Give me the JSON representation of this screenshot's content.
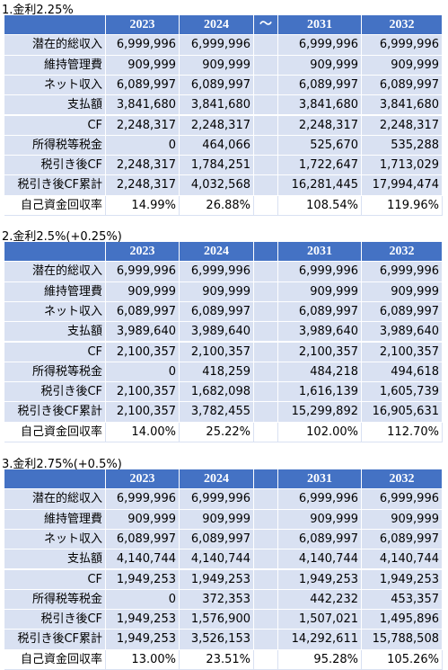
{
  "sections": [
    {
      "title": "1.金利2.25%",
      "headers": [
        "2023",
        "2024",
        "～",
        "2031",
        "2032"
      ],
      "rows": [
        [
          "潜在的総収入",
          "6,999,996",
          "6,999,996",
          "6,999,996",
          "6,999,996"
        ],
        [
          "維持管理費",
          "909,999",
          "909,999",
          "909,999",
          "909,999"
        ],
        [
          "ネット収入",
          "6,089,997",
          "6,089,997",
          "6,089,997",
          "6,089,997"
        ],
        [
          "支払額",
          "3,841,680",
          "3,841,680",
          "3,841,680",
          "3,841,680"
        ],
        [
          "CF",
          "2,248,317",
          "2,248,317",
          "2,248,317",
          "2,248,317"
        ],
        [
          "所得税等税金",
          "0",
          "464,066",
          "525,670",
          "535,288"
        ],
        [
          "税引き後CF",
          "2,248,317",
          "1,784,251",
          "1,722,647",
          "1,713,029"
        ],
        [
          "税引き後CF累計",
          "2,248,317",
          "4,032,568",
          "16,281,445",
          "17,994,474"
        ],
        [
          "自己資金回収率",
          "14.99%",
          "26.88%",
          "108.54%",
          "119.96%"
        ]
      ]
    },
    {
      "title": "2.金利2.5%(+0.25%)",
      "headers": [
        "2023",
        "2024",
        "2031",
        "2032"
      ],
      "rows": [
        [
          "潜在的総収入",
          "6,999,996",
          "6,999,996",
          "6,999,996",
          "6,999,996"
        ],
        [
          "維持管理費",
          "909,999",
          "909,999",
          "909,999",
          "909,999"
        ],
        [
          "ネット収入",
          "6,089,997",
          "6,089,997",
          "6,089,997",
          "6,089,997"
        ],
        [
          "支払額",
          "3,989,640",
          "3,989,640",
          "3,989,640",
          "3,989,640"
        ],
        [
          "CF",
          "2,100,357",
          "2,100,357",
          "2,100,357",
          "2,100,357"
        ],
        [
          "所得税等税金",
          "0",
          "418,259",
          "484,218",
          "494,618"
        ],
        [
          "税引き後CF",
          "2,100,357",
          "1,682,098",
          "1,616,139",
          "1,605,739"
        ],
        [
          "税引き後CF累計",
          "2,100,357",
          "3,782,455",
          "15,299,892",
          "16,905,631"
        ],
        [
          "自己資金回収率",
          "14.00%",
          "25.22%",
          "102.00%",
          "112.70%"
        ]
      ]
    },
    {
      "title": "3.金利2.75%(+0.5%)",
      "headers": [
        "2023",
        "2024",
        "2031",
        "2032"
      ],
      "rows": [
        [
          "潜在的総収入",
          "6,999,996",
          "6,999,996",
          "6,999,996",
          "6,999,996"
        ],
        [
          "維持管理費",
          "909,999",
          "909,999",
          "909,999",
          "909,999"
        ],
        [
          "ネット収入",
          "6,089,997",
          "6,089,997",
          "6,089,997",
          "6,089,997"
        ],
        [
          "支払額",
          "4,140,744",
          "4,140,744",
          "4,140,744",
          "4,140,744"
        ],
        [
          "CF",
          "1,949,253",
          "1,949,253",
          "1,949,253",
          "1,949,253"
        ],
        [
          "所得税等税金",
          "0",
          "372,353",
          "442,232",
          "453,357"
        ],
        [
          "税引き後CF",
          "1,949,253",
          "1,576,900",
          "1,507,021",
          "1,495,896"
        ],
        [
          "税引き後CF累計",
          "1,949,253",
          "3,526,153",
          "14,292,611",
          "15,788,508"
        ],
        [
          "自己資金回収率",
          "13.00%",
          "23.51%",
          "95.28%",
          "105.26%"
        ]
      ]
    }
  ]
}
